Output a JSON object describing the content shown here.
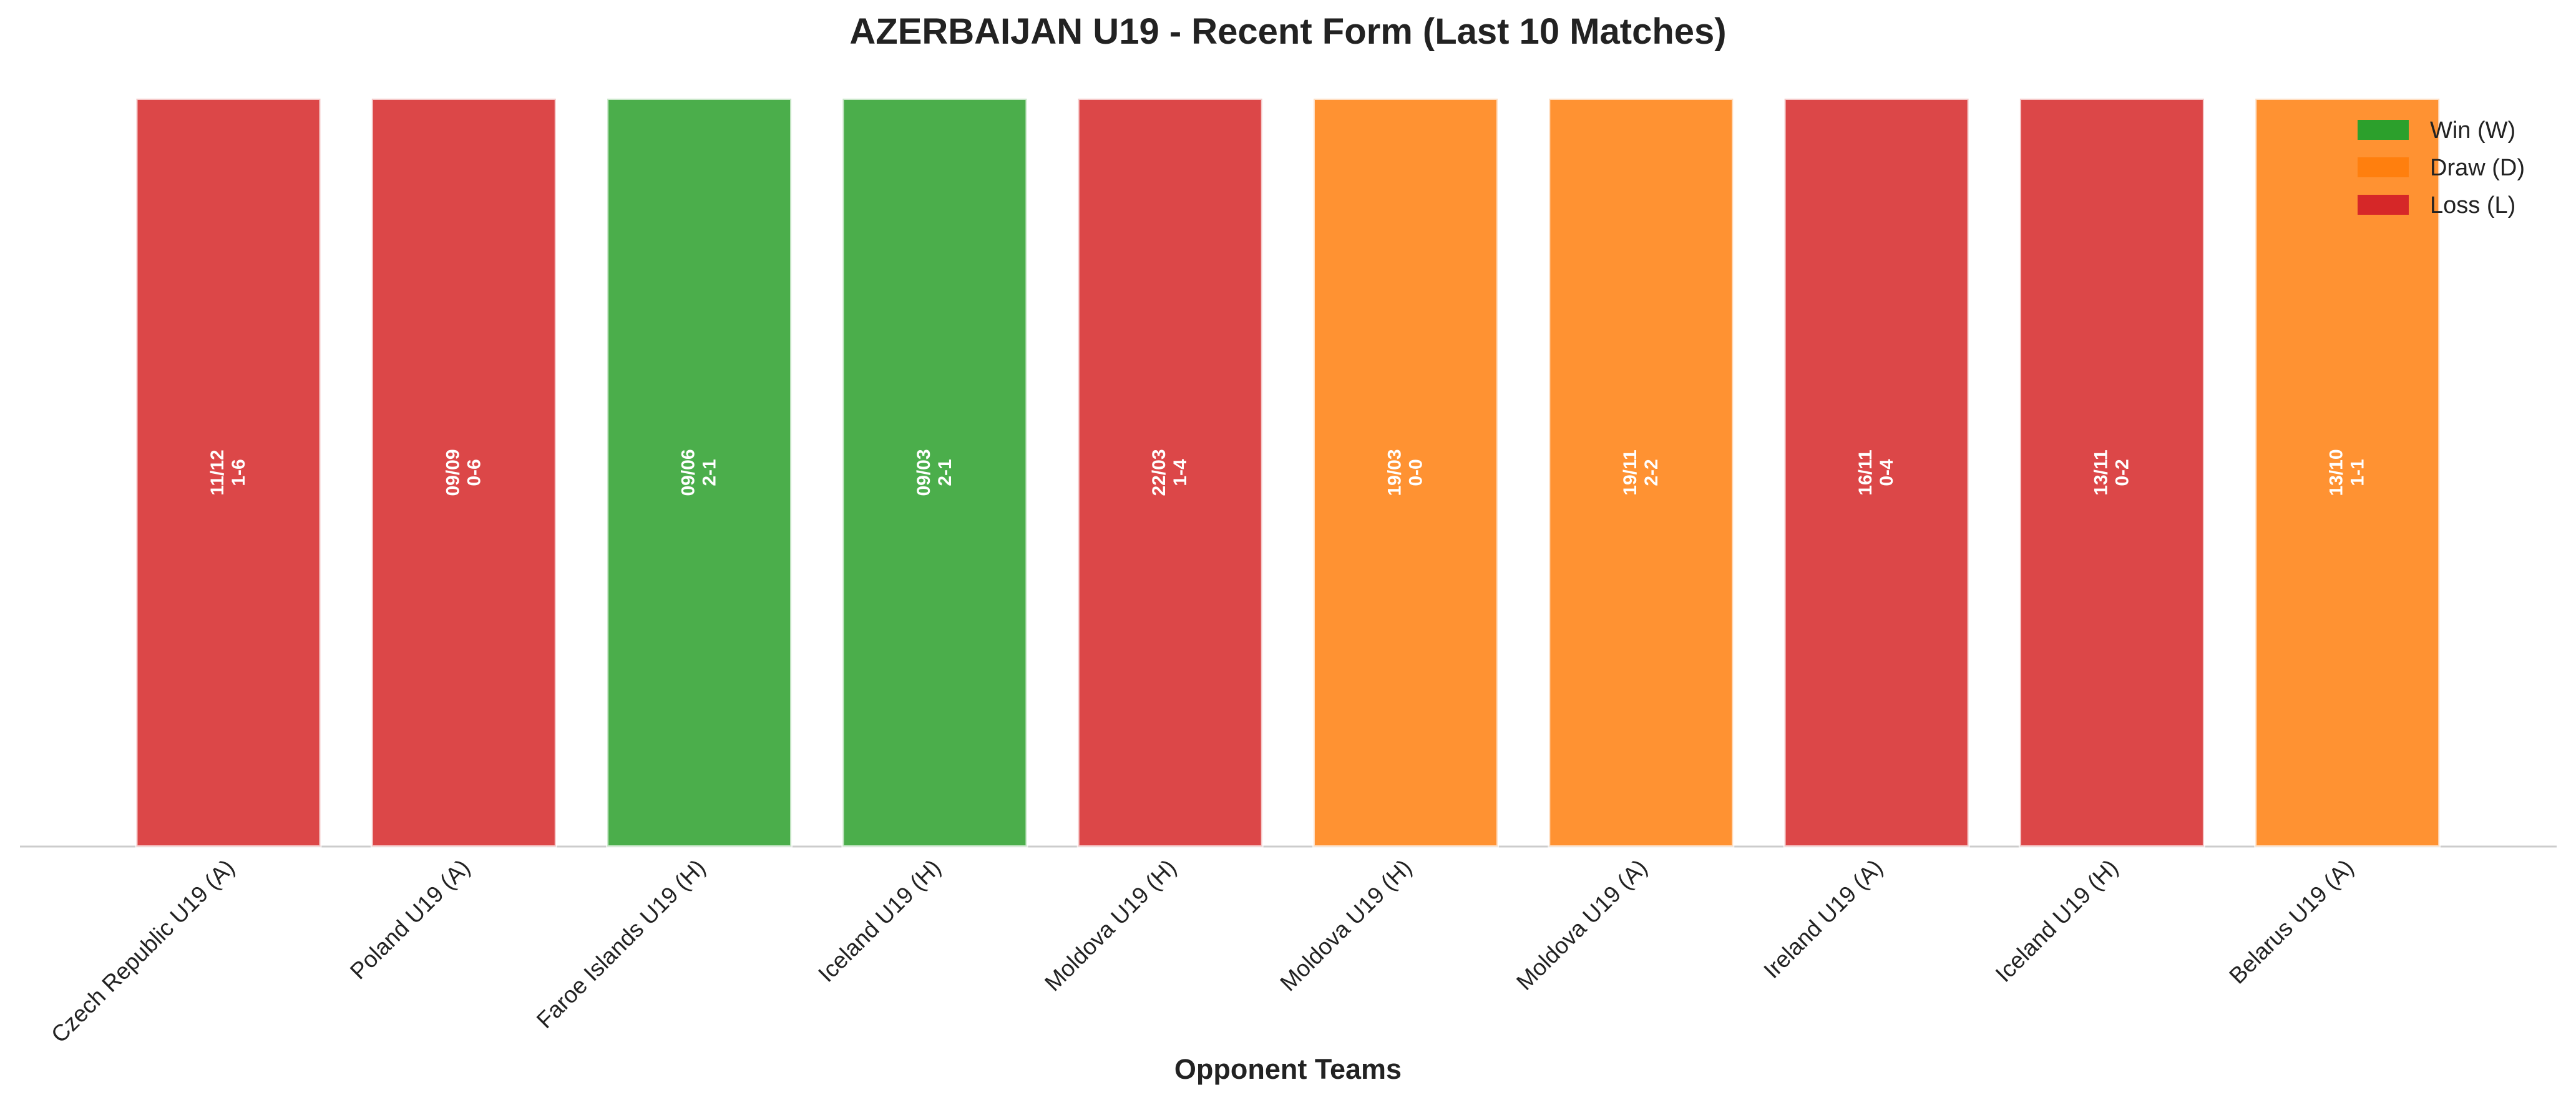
{
  "chart_data": {
    "type": "bar",
    "title": "AZERBAIJAN U19 - Recent Form (Last 10 Matches)",
    "x_label": "Opponent Teams",
    "categories": [
      "Czech Republic U19 (A)",
      "Poland U19 (A)",
      "Faroe Islands U19 (H)",
      "Iceland U19 (H)",
      "Moldova U19 (H)",
      "Moldova U19 (H)",
      "Moldova U19 (A)",
      "Ireland U19 (A)",
      "Iceland U19 (H)",
      "Belarus U19 (A)"
    ],
    "values": [
      1,
      1,
      1,
      1,
      1,
      1,
      1,
      1,
      1,
      1
    ],
    "dates": [
      "11/12",
      "09/09",
      "09/06",
      "09/03",
      "22/03",
      "19/03",
      "19/11",
      "16/11",
      "13/11",
      "13/10"
    ],
    "scores": [
      "1-6",
      "0-6",
      "2-1",
      "2-1",
      "1-4",
      "0-0",
      "2-2",
      "0-4",
      "0-2",
      "1-1"
    ],
    "colors": [
      "#d62728",
      "#d62728",
      "#2ca02c",
      "#2ca02c",
      "#d62728",
      "#ff7f0e",
      "#ff7f0e",
      "#d62728",
      "#d62728",
      "#ff7f0e"
    ],
    "ylim": [
      0,
      1
    ],
    "legend": [
      {
        "name": "Win (W)",
        "color": "#2ca02c"
      },
      {
        "name": "Draw (D)",
        "color": "#ff7f0e"
      },
      {
        "name": "Loss (L)",
        "color": "#d62728"
      }
    ],
    "legend_position": "upper right"
  }
}
